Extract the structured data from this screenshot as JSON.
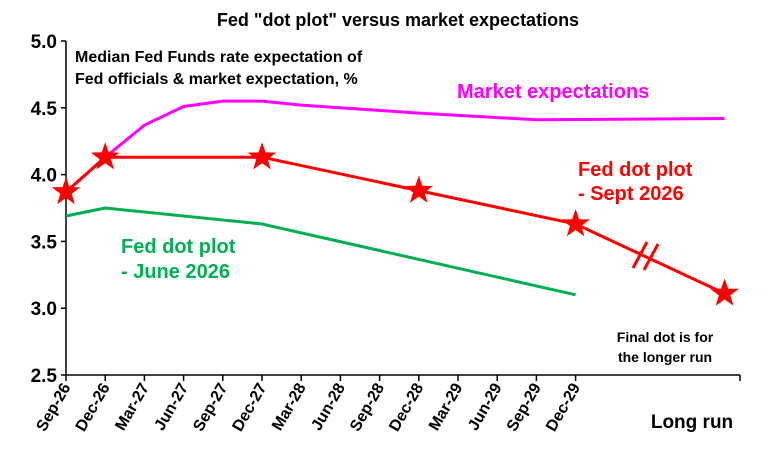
{
  "chart_data": {
    "type": "line",
    "title": "Fed \"dot plot\" versus market expectations",
    "subtitle_lines": [
      "Median Fed Funds rate expectation of",
      "Fed officials & market expectation, %"
    ],
    "ylim": [
      2.5,
      5.0
    ],
    "y_ticks": [
      "5.0",
      "4.5",
      "4.0",
      "3.5",
      "3.0",
      "2.5"
    ],
    "x_tick_labels": [
      "Sep-26",
      "Dec-26",
      "Mar-27",
      "Jun-27",
      "Sep-27",
      "Dec-27",
      "Mar-28",
      "Jun-28",
      "Sep-28",
      "Dec-28",
      "Mar-29",
      "Jun-29",
      "Sep-29",
      "Dec-29"
    ],
    "x_extra_label": "Long run",
    "grid": false,
    "series": [
      {
        "name": "Market expectations",
        "color": "#ff00ff",
        "points": [
          {
            "x": 0,
            "y": 3.87
          },
          {
            "x": 1,
            "y": 4.13
          },
          {
            "x": 2,
            "y": 4.37
          },
          {
            "x": 3,
            "y": 4.51
          },
          {
            "x": 4,
            "y": 4.55
          },
          {
            "x": 5,
            "y": 4.55
          },
          {
            "x": 6,
            "y": 4.52
          },
          {
            "x": 9,
            "y": 4.46
          },
          {
            "x": 12,
            "y": 4.41
          },
          {
            "x": 16.8,
            "y": 4.42
          }
        ]
      },
      {
        "name": "Fed dot plot - Sept 2026",
        "color": "#ff0000",
        "markers": "star",
        "points": [
          {
            "x": 0,
            "y": 3.87
          },
          {
            "x": 1,
            "y": 4.13
          },
          {
            "x": 5,
            "y": 4.13
          },
          {
            "x": 9,
            "y": 3.88
          },
          {
            "x": 13,
            "y": 3.63
          },
          {
            "x": 16.8,
            "y": 3.11
          }
        ]
      },
      {
        "name": "Fed dot plot - June 2026",
        "color": "#00b050",
        "points": [
          {
            "x": 0,
            "y": 3.69
          },
          {
            "x": 1,
            "y": 3.75
          },
          {
            "x": 5,
            "y": 3.63
          },
          {
            "x": 13,
            "y": 3.1
          }
        ]
      }
    ],
    "series_labels": {
      "market": "Market expectations",
      "sept_line1": "Fed dot plot",
      "sept_line2": "- Sept 2026",
      "june_line1": "Fed dot plot",
      "june_line2": "- June 2026"
    },
    "annotation_lines": [
      "Final dot is for",
      "the longer run"
    ]
  }
}
